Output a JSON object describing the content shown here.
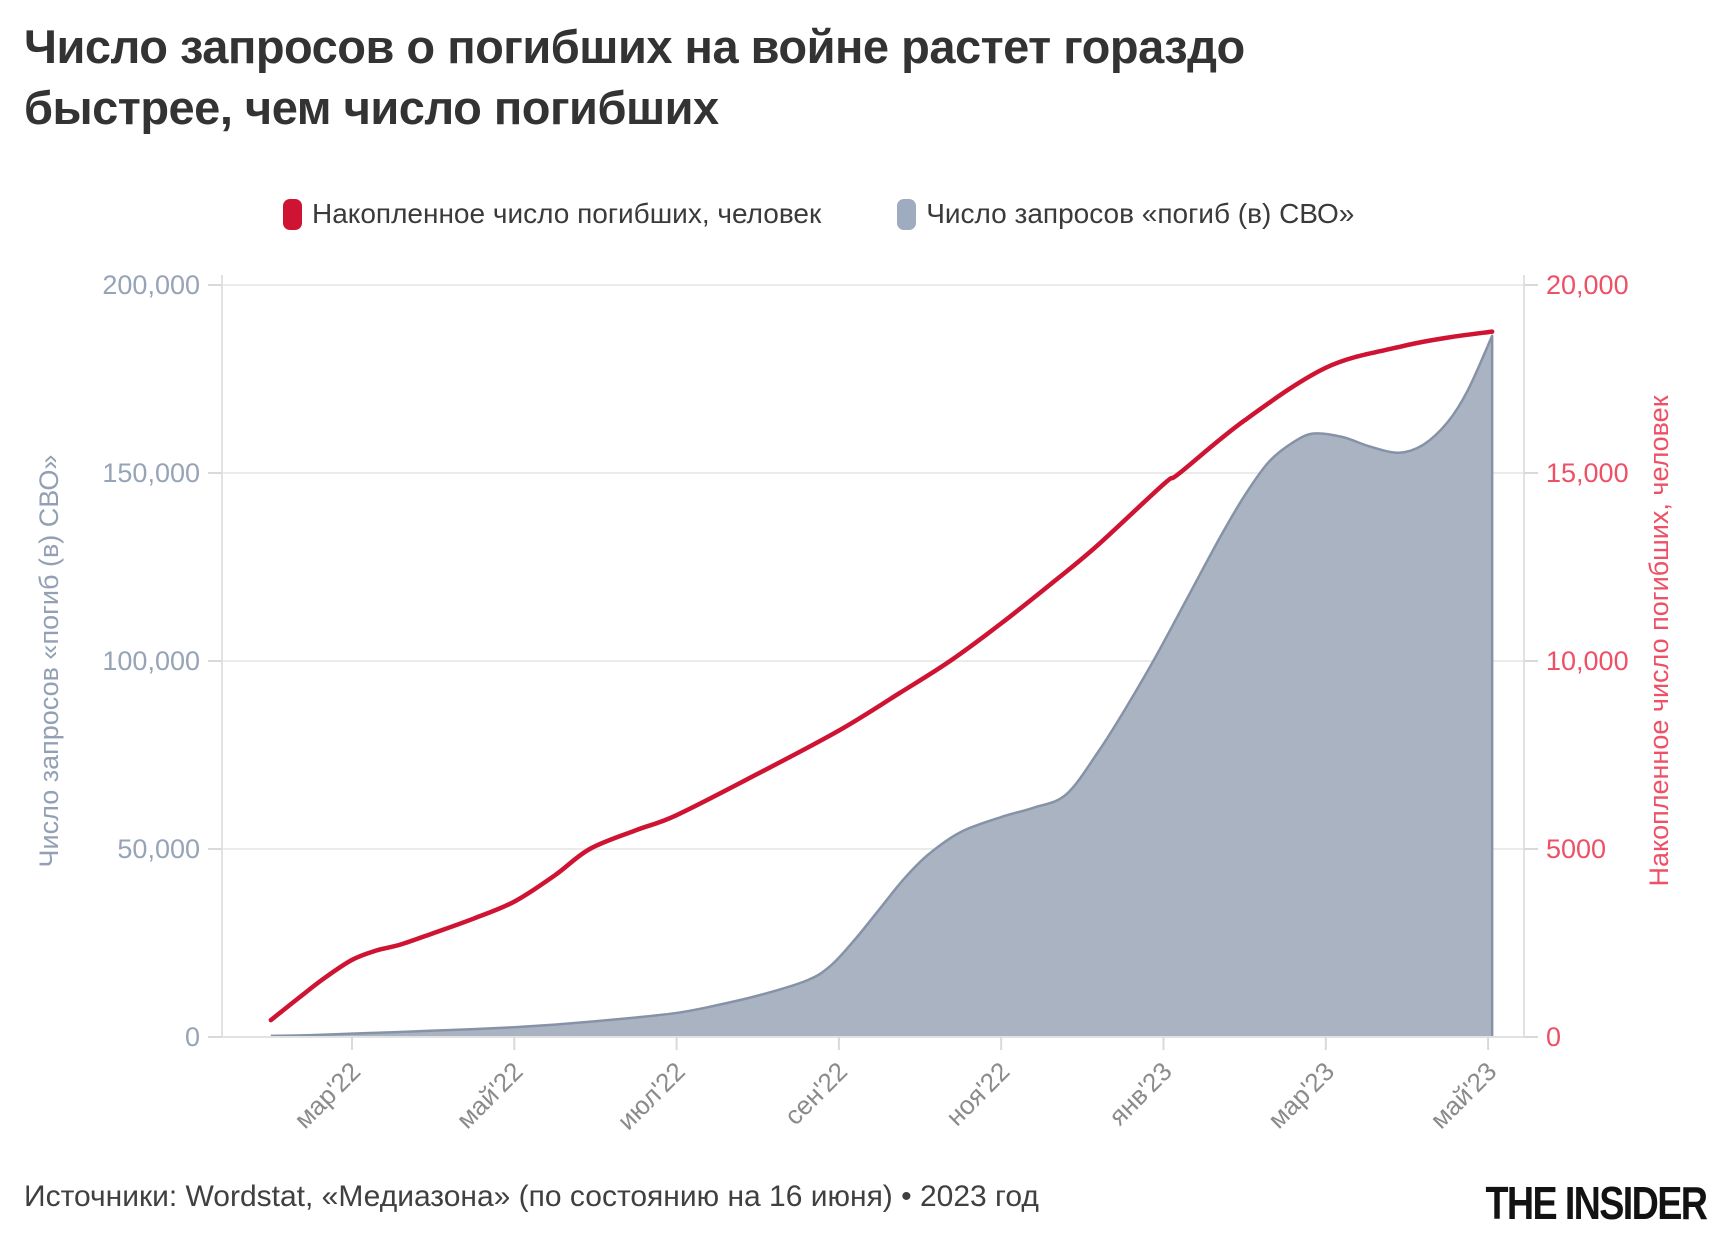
{
  "title": {
    "text": "Число запросов о погибших на войне растет гораздо быстрее, чем число погибших",
    "lines": [
      "Число запросов о погибших на войне растет гораздо",
      "быстрее, чем число погибших"
    ]
  },
  "legend": {
    "items": [
      {
        "label": "Накопленное число погибших, человек",
        "color": "#cf1433"
      },
      {
        "label": "Число запросов «погиб (в) СВО»",
        "color": "#9fabbe"
      }
    ]
  },
  "footer": {
    "source": "Источники: Wordstat, «Медиазона» (по состоянию на 16 июня) • 2023 год",
    "logo": "THE INSIDER"
  },
  "chart_data": {
    "type": "area+line, dual y-axis",
    "x_unit": "months since фев'22 (мар'22 = 1 … май'23 = 15)",
    "grid": true,
    "legend_position": "top",
    "background": "#ffffff",
    "grid_color": "#ebebeb",
    "axis_line_color": "#e2e2e2",
    "tick_mark_color": "#d9d9d9",
    "x_ticks": {
      "positions": [
        1,
        3,
        5,
        7,
        9,
        11,
        13,
        15
      ],
      "labels": [
        "мар'22",
        "май'22",
        "июл'22",
        "сен'22",
        "ноя'22",
        "янв'23",
        "мар'23",
        "май'23"
      ]
    },
    "left_axis": {
      "title": "Число запросов «погиб (в) СВО»",
      "range": [
        0,
        200000
      ],
      "ticks": [
        0,
        50000,
        100000,
        150000,
        200000
      ],
      "tick_labels": [
        "0",
        "50,000",
        "100,000",
        "150,000",
        "200,000"
      ],
      "color": "#97a3b7"
    },
    "right_axis": {
      "title": "Накопленное число погибших, человек",
      "range": [
        0,
        20000
      ],
      "ticks": [
        0,
        5000,
        10000,
        15000,
        20000
      ],
      "tick_labels": [
        "0",
        "5000",
        "10,000",
        "15,000",
        "20,000"
      ],
      "color": "#ee5065"
    },
    "series": [
      {
        "name": "Число запросов «погиб (в) СВО»",
        "type": "area",
        "axis": "left",
        "fill": "#a9b3c2",
        "stroke": "#8693a7",
        "points": [
          [
            0,
            300
          ],
          [
            0.5,
            500
          ],
          [
            1,
            900
          ],
          [
            1.5,
            1250
          ],
          [
            2,
            1700
          ],
          [
            2.5,
            2100
          ],
          [
            3,
            2600
          ],
          [
            3.5,
            3300
          ],
          [
            4,
            4200
          ],
          [
            4.5,
            5200
          ],
          [
            5,
            6400
          ],
          [
            5.4,
            8000
          ],
          [
            6,
            11000
          ],
          [
            6.6,
            15000
          ],
          [
            6.9,
            19000
          ],
          [
            7.2,
            26000
          ],
          [
            7.5,
            34000
          ],
          [
            7.8,
            42000
          ],
          [
            8.1,
            48500
          ],
          [
            8.5,
            54500
          ],
          [
            9,
            58500
          ],
          [
            9.4,
            61000
          ],
          [
            9.8,
            64500
          ],
          [
            10.2,
            76000
          ],
          [
            10.55,
            88000
          ],
          [
            10.9,
            101000
          ],
          [
            11.3,
            117000
          ],
          [
            11.7,
            133000
          ],
          [
            12,
            144000
          ],
          [
            12.3,
            153000
          ],
          [
            12.6,
            158200
          ],
          [
            12.85,
            160500
          ],
          [
            13.2,
            159600
          ],
          [
            13.55,
            157000
          ],
          [
            13.9,
            155400
          ],
          [
            14.2,
            157500
          ],
          [
            14.5,
            163500
          ],
          [
            14.75,
            172000
          ],
          [
            15.05,
            186500
          ]
        ]
      },
      {
        "name": "Накопленное число погибших, человек",
        "type": "line",
        "axis": "right",
        "color": "#cf1433",
        "points": [
          [
            0,
            450
          ],
          [
            0.35,
            1050
          ],
          [
            0.65,
            1550
          ],
          [
            1,
            2050
          ],
          [
            1.3,
            2300
          ],
          [
            1.6,
            2460
          ],
          [
            2,
            2760
          ],
          [
            2.5,
            3150
          ],
          [
            3,
            3600
          ],
          [
            3.5,
            4300
          ],
          [
            3.93,
            5000
          ],
          [
            4.5,
            5500
          ],
          [
            5,
            5900
          ],
          [
            6,
            7000
          ],
          [
            7,
            8150
          ],
          [
            7.75,
            9150
          ],
          [
            8.37,
            10000
          ],
          [
            9,
            11000
          ],
          [
            9.7,
            12200
          ],
          [
            10.2,
            13100
          ],
          [
            11,
            14700
          ],
          [
            11.2,
            15000
          ],
          [
            12,
            16400
          ],
          [
            13,
            17800
          ],
          [
            13.9,
            18350
          ],
          [
            14.5,
            18600
          ],
          [
            15.05,
            18760
          ]
        ]
      }
    ]
  }
}
